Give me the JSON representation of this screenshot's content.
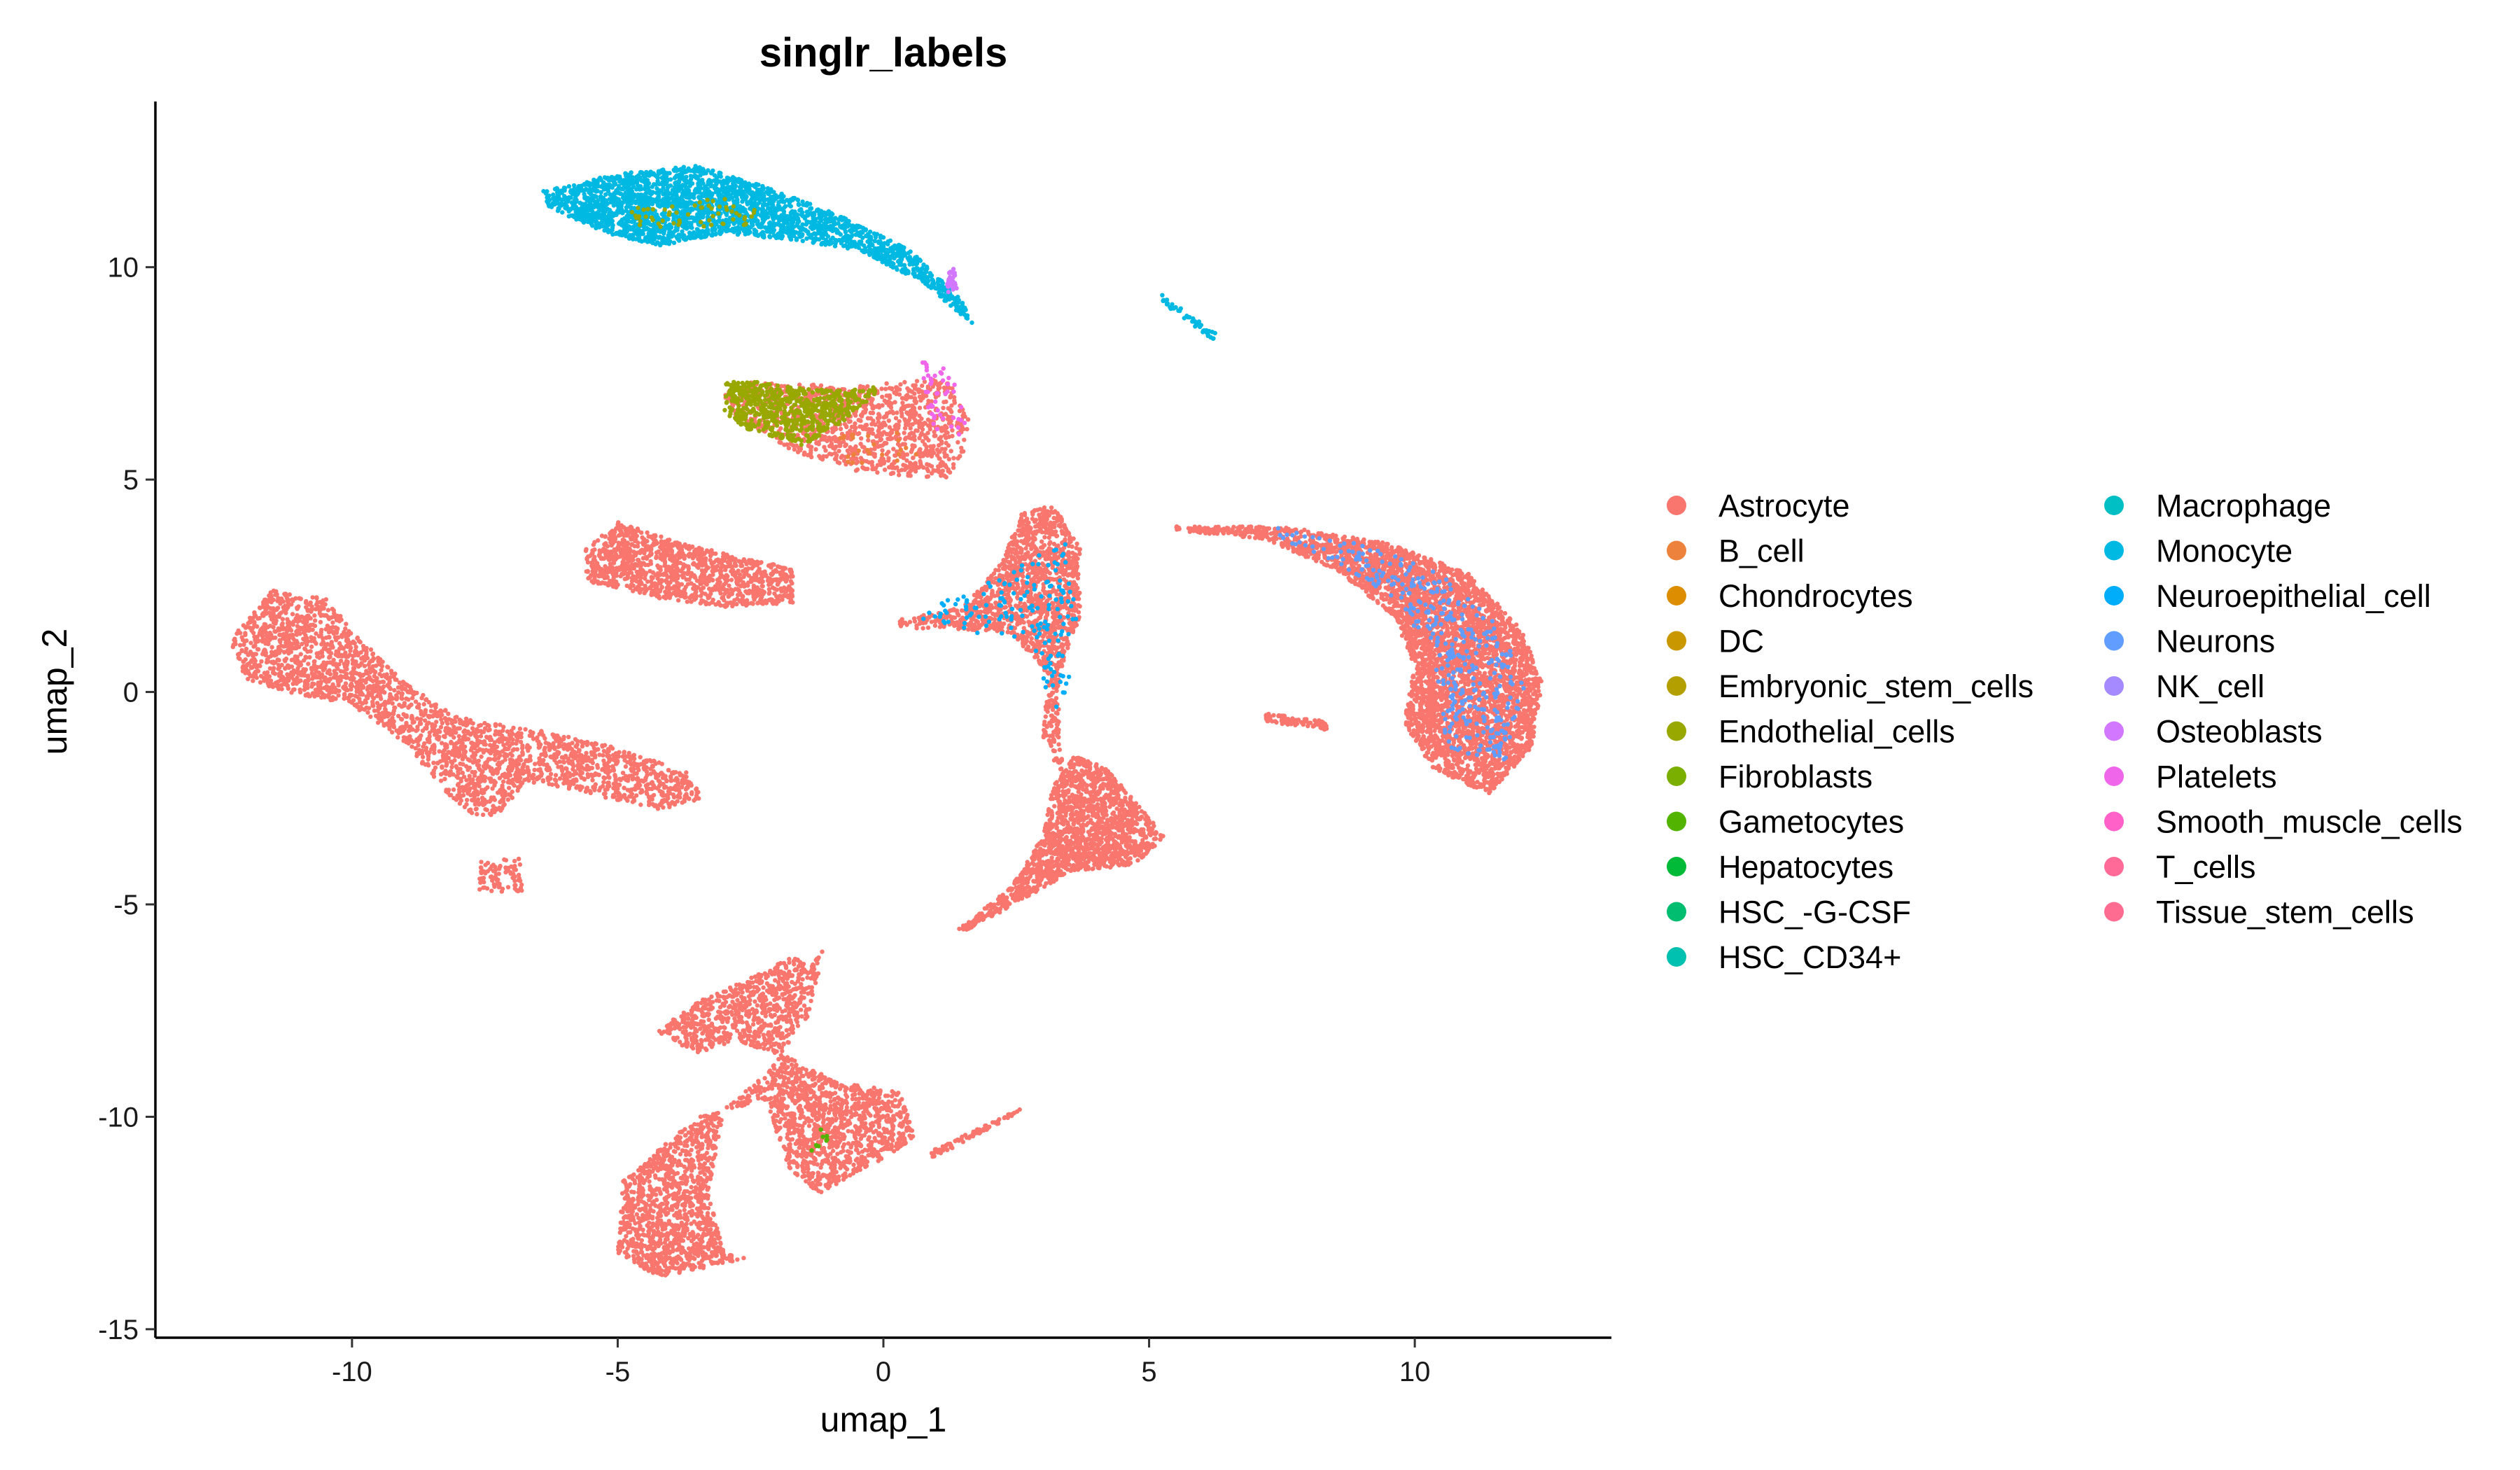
{
  "chart_data": {
    "type": "scatter",
    "title": "singlr_labels",
    "xlabel": "umap_1",
    "ylabel": "umap_2",
    "xlim": [
      -13.7,
      13.7
    ],
    "ylim": [
      -15.2,
      13.9
    ],
    "x_ticks": [
      -10,
      -5,
      0,
      5,
      10
    ],
    "y_ticks": [
      -15,
      -10,
      -5,
      0,
      5,
      10
    ],
    "x_tick_labels": [
      "-10",
      "-5",
      "0",
      "5",
      "10"
    ],
    "y_tick_labels": [
      "-15",
      "-10",
      "-5",
      "0",
      "5",
      "10"
    ],
    "grid": false,
    "legend_position": "right",
    "legend": [
      {
        "name": "Astrocyte",
        "color": "#F8766D"
      },
      {
        "name": "B_cell",
        "color": "#EC823C"
      },
      {
        "name": "Chondrocytes",
        "color": "#DC8E00"
      },
      {
        "name": "DC",
        "color": "#C99800"
      },
      {
        "name": "Embryonic_stem_cells",
        "color": "#B3A000"
      },
      {
        "name": "Endothelial_cells",
        "color": "#99A800"
      },
      {
        "name": "Fibroblasts",
        "color": "#7AAF00"
      },
      {
        "name": "Gametocytes",
        "color": "#53B400"
      },
      {
        "name": "Hepatocytes",
        "color": "#00BA38"
      },
      {
        "name": "HSC_-G-CSF",
        "color": "#00BD70"
      },
      {
        "name": "HSC_CD34+",
        "color": "#00C0AF"
      },
      {
        "name": "Macrophage",
        "color": "#00BFC4"
      },
      {
        "name": "Monocyte",
        "color": "#00B9E3"
      },
      {
        "name": "Neuroepithelial_cell",
        "color": "#00ADFA"
      },
      {
        "name": "Neurons",
        "color": "#619CFF"
      },
      {
        "name": "NK_cell",
        "color": "#A58AFF"
      },
      {
        "name": "Osteoblasts",
        "color": "#D277FF"
      },
      {
        "name": "Platelets",
        "color": "#F066EA"
      },
      {
        "name": "Smooth_muscle_cells",
        "color": "#FF61C9"
      },
      {
        "name": "T_cells",
        "color": "#FF6A98"
      },
      {
        "name": "Tissue_stem_cells",
        "color": "#FF6C91"
      }
    ],
    "clusters": [
      {
        "label": "Astrocyte",
        "n": 2600,
        "poly": [
          [
            -12.3,
            1.2
          ],
          [
            -11.5,
            2.4
          ],
          [
            -10.5,
            2.2
          ],
          [
            -9.8,
            1.2
          ],
          [
            -9.0,
            0.2
          ],
          [
            -8.0,
            -0.6
          ],
          [
            -6.5,
            -0.9
          ],
          [
            -5.0,
            -1.3
          ],
          [
            -3.7,
            -1.9
          ],
          [
            -3.4,
            -2.5
          ],
          [
            -4.3,
            -2.8
          ],
          [
            -5.5,
            -2.4
          ],
          [
            -6.7,
            -2.1
          ],
          [
            -7.2,
            -2.8
          ],
          [
            -7.6,
            -3.0
          ],
          [
            -8.2,
            -2.4
          ],
          [
            -9.0,
            -1.2
          ],
          [
            -10.0,
            -0.3
          ],
          [
            -11.2,
            0.0
          ],
          [
            -12.0,
            0.3
          ]
        ]
      },
      {
        "label": "Astrocyte",
        "n": 90,
        "poly": [
          [
            -7.6,
            -4.0
          ],
          [
            -6.8,
            -3.9
          ],
          [
            -6.8,
            -4.7
          ],
          [
            -7.6,
            -4.7
          ]
        ]
      },
      {
        "label": "Astrocyte",
        "n": 1200,
        "poly": [
          [
            -5.6,
            3.4
          ],
          [
            -5.0,
            4.0
          ],
          [
            -3.8,
            3.5
          ],
          [
            -1.7,
            2.9
          ],
          [
            -1.7,
            2.1
          ],
          [
            -3.0,
            2.0
          ],
          [
            -4.2,
            2.2
          ],
          [
            -5.6,
            2.6
          ]
        ]
      },
      {
        "label": "Astrocyte",
        "n": 3200,
        "poly": [
          [
            -4.9,
            -11.5
          ],
          [
            -3.5,
            -10.0
          ],
          [
            -2.2,
            -9.6
          ],
          [
            -1.8,
            -11.2
          ],
          [
            -1.2,
            -11.8
          ],
          [
            -0.3,
            -11.2
          ],
          [
            0.6,
            -10.5
          ],
          [
            0.3,
            -9.4
          ],
          [
            -0.8,
            -9.2
          ],
          [
            -1.8,
            -8.6
          ],
          [
            -2.8,
            -8.2
          ],
          [
            -3.5,
            -8.5
          ],
          [
            -4.3,
            -8.0
          ],
          [
            -3.5,
            -7.3
          ],
          [
            -2.6,
            -6.8
          ],
          [
            -1.7,
            -6.2
          ],
          [
            -1.4,
            -6.5
          ],
          [
            -1.1,
            -6.0
          ],
          [
            -1.4,
            -7.6
          ],
          [
            -2.2,
            -9.0
          ],
          [
            -3.0,
            -9.8
          ],
          [
            -3.3,
            -11.8
          ],
          [
            -3.0,
            -13.2
          ],
          [
            -2.5,
            -13.3
          ],
          [
            -4.2,
            -13.8
          ],
          [
            -5.0,
            -13.2
          ]
        ]
      },
      {
        "label": "Astrocyte",
        "n": 80,
        "poly": [
          [
            0.9,
            -10.8
          ],
          [
            2.6,
            -9.8
          ],
          [
            2.4,
            -10.0
          ],
          [
            0.9,
            -11.0
          ]
        ]
      },
      {
        "label": "Astrocyte",
        "n": 1700,
        "poly": [
          [
            1.4,
            -5.6
          ],
          [
            2.4,
            -4.6
          ],
          [
            3.0,
            -3.4
          ],
          [
            3.2,
            -2.2
          ],
          [
            3.6,
            -1.5
          ],
          [
            4.2,
            -1.8
          ],
          [
            5.3,
            -3.4
          ],
          [
            4.7,
            -4.1
          ],
          [
            3.6,
            -4.2
          ],
          [
            2.6,
            -4.9
          ],
          [
            1.6,
            -5.6
          ]
        ]
      },
      {
        "label": "Astrocyte",
        "n": 1500,
        "poly": [
          [
            0.3,
            1.7
          ],
          [
            1.5,
            2.0
          ],
          [
            2.2,
            3.0
          ],
          [
            2.6,
            4.2
          ],
          [
            3.2,
            4.4
          ],
          [
            3.7,
            3.4
          ],
          [
            3.7,
            1.8
          ],
          [
            3.3,
            0.3
          ],
          [
            3.3,
            -1.0
          ],
          [
            3.4,
            -2.0
          ],
          [
            3.0,
            -1.2
          ],
          [
            3.1,
            0.4
          ],
          [
            2.4,
            1.4
          ],
          [
            1.2,
            1.5
          ],
          [
            0.3,
            1.5
          ]
        ]
      },
      {
        "label": "Astrocyte",
        "n": 4200,
        "poly": [
          [
            5.5,
            3.9
          ],
          [
            7.5,
            3.9
          ],
          [
            9.5,
            3.5
          ],
          [
            11.0,
            2.8
          ],
          [
            12.0,
            1.5
          ],
          [
            12.4,
            0.2
          ],
          [
            12.2,
            -1.3
          ],
          [
            11.4,
            -2.4
          ],
          [
            10.3,
            -1.8
          ],
          [
            9.8,
            -0.7
          ],
          [
            10.0,
            0.6
          ],
          [
            9.6,
            1.8
          ],
          [
            8.6,
            2.8
          ],
          [
            7.2,
            3.6
          ],
          [
            5.5,
            3.8
          ]
        ]
      },
      {
        "label": "Astrocyte",
        "n": 90,
        "poly": [
          [
            7.2,
            -0.5
          ],
          [
            8.4,
            -0.7
          ],
          [
            8.4,
            -0.9
          ],
          [
            7.2,
            -0.7
          ]
        ]
      },
      {
        "label": "Astrocyte",
        "n": 1100,
        "poly": [
          [
            -3.0,
            7.0
          ],
          [
            -2.6,
            7.3
          ],
          [
            -0.5,
            7.2
          ],
          [
            1.2,
            7.4
          ],
          [
            1.6,
            6.4
          ],
          [
            1.5,
            5.6
          ],
          [
            1.2,
            5.0
          ],
          [
            -0.5,
            5.2
          ],
          [
            -1.6,
            5.6
          ],
          [
            -2.8,
            6.5
          ]
        ]
      },
      {
        "label": "Endothelial_cells",
        "n": 650,
        "poly": [
          [
            -3.0,
            7.3
          ],
          [
            -2.4,
            7.3
          ],
          [
            -1.0,
            7.1
          ],
          [
            0.0,
            7.2
          ],
          [
            -0.6,
            6.5
          ],
          [
            -1.5,
            5.8
          ],
          [
            -2.6,
            6.2
          ],
          [
            -3.0,
            6.6
          ]
        ]
      },
      {
        "label": "Monocyte",
        "n": 2600,
        "poly": [
          [
            -6.4,
            11.8
          ],
          [
            -5.0,
            12.2
          ],
          [
            -3.5,
            12.4
          ],
          [
            -2.0,
            11.8
          ],
          [
            -0.8,
            11.2
          ],
          [
            0.5,
            10.4
          ],
          [
            1.5,
            9.2
          ],
          [
            1.7,
            8.6
          ],
          [
            0.8,
            9.6
          ],
          [
            -0.5,
            10.4
          ],
          [
            -1.5,
            10.6
          ],
          [
            -3.0,
            10.8
          ],
          [
            -4.2,
            10.5
          ],
          [
            -5.2,
            10.8
          ],
          [
            -6.3,
            11.4
          ]
        ]
      },
      {
        "label": "Monocyte",
        "n": 50,
        "poly": [
          [
            5.2,
            9.4
          ],
          [
            6.3,
            8.4
          ],
          [
            6.2,
            8.3
          ],
          [
            5.2,
            9.2
          ]
        ]
      },
      {
        "label": "Platelets",
        "n": 45,
        "poly": [
          [
            0.7,
            7.8
          ],
          [
            1.3,
            7.6
          ],
          [
            1.6,
            6.0
          ],
          [
            0.9,
            6.2
          ]
        ]
      },
      {
        "label": "Neurons",
        "n": 380,
        "poly": [
          [
            7.4,
            3.9
          ],
          [
            9.0,
            3.5
          ],
          [
            10.5,
            2.8
          ],
          [
            11.6,
            1.6
          ],
          [
            12.1,
            0.0
          ],
          [
            11.7,
            -1.6
          ],
          [
            10.6,
            -1.4
          ],
          [
            10.4,
            0.5
          ],
          [
            9.8,
            2.0
          ],
          [
            8.6,
            3.0
          ],
          [
            7.2,
            3.7
          ]
        ]
      },
      {
        "label": "Neuroepithelial_cell",
        "n": 160,
        "poly": [
          [
            0.5,
            1.8
          ],
          [
            2.4,
            2.8
          ],
          [
            3.4,
            3.8
          ],
          [
            3.7,
            1.2
          ],
          [
            3.3,
            -0.5
          ],
          [
            2.6,
            1.2
          ],
          [
            1.2,
            1.5
          ]
        ]
      },
      {
        "label": "Endothelial_cells",
        "n": 60,
        "poly": [
          [
            -4.8,
            11.4
          ],
          [
            -2.4,
            11.7
          ],
          [
            -2.4,
            11.0
          ],
          [
            -4.8,
            10.9
          ]
        ]
      },
      {
        "label": "Osteoblasts",
        "n": 30,
        "poly": [
          [
            1.2,
            9.9
          ],
          [
            1.4,
            10.0
          ],
          [
            1.4,
            9.5
          ],
          [
            1.2,
            9.4
          ]
        ]
      },
      {
        "label": "B_cell",
        "n": 25,
        "poly": [
          [
            -1.0,
            6.0
          ],
          [
            0.6,
            6.2
          ],
          [
            0.8,
            5.4
          ],
          [
            -0.6,
            5.3
          ]
        ]
      },
      {
        "label": "Gametocytes",
        "n": 10,
        "poly": [
          [
            -1.4,
            -10.3
          ],
          [
            -0.9,
            -10.3
          ],
          [
            -0.9,
            -10.8
          ],
          [
            -1.4,
            -10.8
          ]
        ]
      }
    ]
  }
}
